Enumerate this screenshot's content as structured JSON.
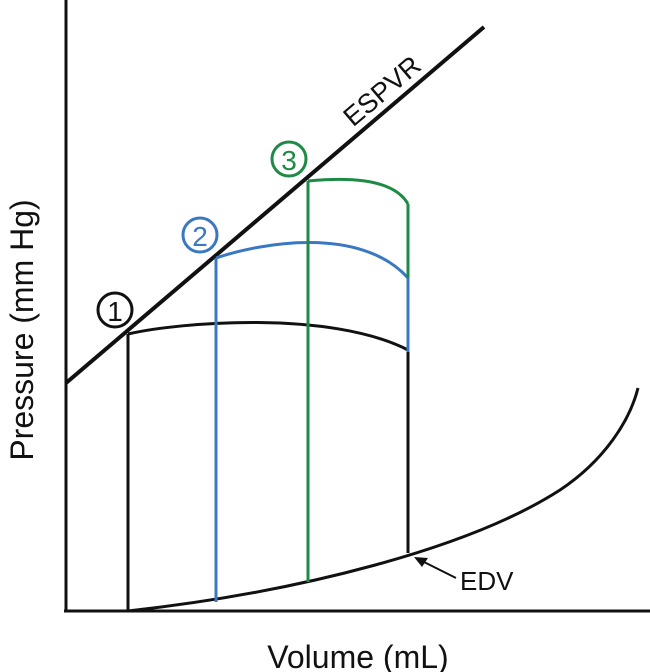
{
  "axes": {
    "x_label": "Volume (mL)",
    "y_label": "Pressure (mm Hg)"
  },
  "labels": {
    "espvr": "ESPVR",
    "edv": "EDV"
  },
  "loops": [
    {
      "number": "1",
      "color": "#111111"
    },
    {
      "number": "2",
      "color": "#3a78c2"
    },
    {
      "number": "3",
      "color": "#1e8a45"
    }
  ]
}
